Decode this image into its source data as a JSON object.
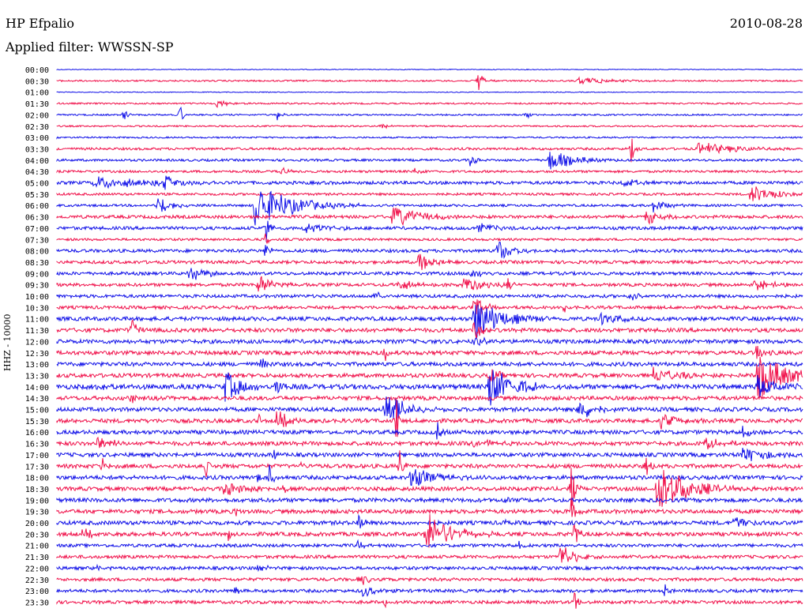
{
  "header": {
    "station": "HP Efpalio",
    "date": "2010-08-28",
    "filter": "Applied filter: WWSSN-SP"
  },
  "colors": {
    "odd_trace": "#1010e8",
    "even_trace": "#f0104a",
    "text": "#000000",
    "background": "#ffffff"
  },
  "chart_data": {
    "type": "line",
    "title": "HP Efpalio",
    "ylabel": "HHZ - 10000",
    "xlabel": "",
    "row_interval_minutes": 30,
    "grid": false,
    "rows": [
      "00:00",
      "00:30",
      "01:00",
      "01:30",
      "02:00",
      "02:30",
      "03:00",
      "03:30",
      "04:00",
      "04:30",
      "05:00",
      "05:30",
      "06:00",
      "06:30",
      "07:00",
      "07:30",
      "08:00",
      "08:30",
      "09:00",
      "09:30",
      "10:00",
      "10:30",
      "11:00",
      "11:30",
      "12:00",
      "12:30",
      "13:00",
      "13:30",
      "14:00",
      "14:30",
      "15:00",
      "15:30",
      "16:00",
      "16:30",
      "17:00",
      "17:30",
      "18:00",
      "18:30",
      "19:00",
      "19:30",
      "20:00",
      "20:30",
      "21:00",
      "21:30",
      "22:00",
      "22:30",
      "23:00",
      "23:30"
    ],
    "noise_level": [
      1,
      2,
      1,
      2,
      2,
      2,
      2,
      3,
      3,
      3,
      4,
      3,
      3,
      4,
      4,
      3,
      4,
      4,
      4,
      4,
      4,
      4,
      5,
      5,
      5,
      5,
      5,
      5,
      6,
      5,
      5,
      5,
      5,
      5,
      5,
      5,
      5,
      5,
      5,
      5,
      5,
      5,
      4,
      4,
      4,
      4,
      4,
      4
    ],
    "events": [
      {
        "row": 1,
        "t": 0.565,
        "amp": 16,
        "dur": 0.006
      },
      {
        "row": 1,
        "t": 0.7,
        "amp": 5,
        "dur": 0.04
      },
      {
        "row": 3,
        "t": 0.215,
        "amp": 6,
        "dur": 0.012
      },
      {
        "row": 4,
        "t": 0.09,
        "amp": 10,
        "dur": 0.004
      },
      {
        "row": 4,
        "t": 0.165,
        "amp": 14,
        "dur": 0.004
      },
      {
        "row": 4,
        "t": 0.295,
        "amp": 9,
        "dur": 0.004
      },
      {
        "row": 4,
        "t": 0.63,
        "amp": 7,
        "dur": 0.003
      },
      {
        "row": 5,
        "t": 0.43,
        "amp": 4,
        "dur": 0.015
      },
      {
        "row": 7,
        "t": 0.77,
        "amp": 18,
        "dur": 0.004
      },
      {
        "row": 7,
        "t": 0.86,
        "amp": 8,
        "dur": 0.05
      },
      {
        "row": 8,
        "t": 0.555,
        "amp": 10,
        "dur": 0.006
      },
      {
        "row": 8,
        "t": 0.66,
        "amp": 14,
        "dur": 0.03
      },
      {
        "row": 9,
        "t": 0.3,
        "amp": 6,
        "dur": 0.008
      },
      {
        "row": 9,
        "t": 0.48,
        "amp": 5,
        "dur": 0.008
      },
      {
        "row": 10,
        "t": 0.05,
        "amp": 7,
        "dur": 0.08
      },
      {
        "row": 10,
        "t": 0.145,
        "amp": 10,
        "dur": 0.015
      },
      {
        "row": 10,
        "t": 0.76,
        "amp": 5,
        "dur": 0.02
      },
      {
        "row": 11,
        "t": 0.93,
        "amp": 12,
        "dur": 0.03
      },
      {
        "row": 12,
        "t": 0.135,
        "amp": 12,
        "dur": 0.02
      },
      {
        "row": 12,
        "t": 0.265,
        "amp": 30,
        "dur": 0.045
      },
      {
        "row": 12,
        "t": 0.8,
        "amp": 9,
        "dur": 0.015
      },
      {
        "row": 13,
        "t": 0.45,
        "amp": 14,
        "dur": 0.035
      },
      {
        "row": 13,
        "t": 0.79,
        "amp": 10,
        "dur": 0.02
      },
      {
        "row": 14,
        "t": 0.28,
        "amp": 22,
        "dur": 0.004
      },
      {
        "row": 14,
        "t": 0.33,
        "amp": 8,
        "dur": 0.025
      },
      {
        "row": 14,
        "t": 0.565,
        "amp": 6,
        "dur": 0.02
      },
      {
        "row": 15,
        "t": 0.28,
        "amp": 15,
        "dur": 0.004
      },
      {
        "row": 16,
        "t": 0.28,
        "amp": 14,
        "dur": 0.004
      },
      {
        "row": 16,
        "t": 0.59,
        "amp": 14,
        "dur": 0.02
      },
      {
        "row": 17,
        "t": 0.485,
        "amp": 14,
        "dur": 0.015
      },
      {
        "row": 18,
        "t": 0.175,
        "amp": 12,
        "dur": 0.02
      },
      {
        "row": 18,
        "t": 0.555,
        "amp": 6,
        "dur": 0.02
      },
      {
        "row": 19,
        "t": 0.27,
        "amp": 12,
        "dur": 0.02
      },
      {
        "row": 19,
        "t": 0.455,
        "amp": 8,
        "dur": 0.02
      },
      {
        "row": 19,
        "t": 0.545,
        "amp": 12,
        "dur": 0.025
      },
      {
        "row": 19,
        "t": 0.605,
        "amp": 8,
        "dur": 0.004
      },
      {
        "row": 19,
        "t": 0.935,
        "amp": 8,
        "dur": 0.02
      },
      {
        "row": 20,
        "t": 0.425,
        "amp": 6,
        "dur": 0.01
      },
      {
        "row": 20,
        "t": 0.77,
        "amp": 6,
        "dur": 0.01
      },
      {
        "row": 21,
        "t": 0.56,
        "amp": 22,
        "dur": 0.01
      },
      {
        "row": 21,
        "t": 0.68,
        "amp": 10,
        "dur": 0.004
      },
      {
        "row": 22,
        "t": 0.56,
        "amp": 30,
        "dur": 0.03
      },
      {
        "row": 22,
        "t": 0.73,
        "amp": 8,
        "dur": 0.02
      },
      {
        "row": 23,
        "t": 0.1,
        "amp": 18,
        "dur": 0.006
      },
      {
        "row": 23,
        "t": 0.56,
        "amp": 16,
        "dur": 0.01
      },
      {
        "row": 24,
        "t": 0.56,
        "amp": 12,
        "dur": 0.008
      },
      {
        "row": 25,
        "t": 0.44,
        "amp": 10,
        "dur": 0.004
      },
      {
        "row": 25,
        "t": 0.51,
        "amp": 6,
        "dur": 0.004
      },
      {
        "row": 25,
        "t": 0.937,
        "amp": 12,
        "dur": 0.008
      },
      {
        "row": 26,
        "t": 0.275,
        "amp": 14,
        "dur": 0.004
      },
      {
        "row": 27,
        "t": 0.58,
        "amp": 12,
        "dur": 0.01
      },
      {
        "row": 27,
        "t": 0.8,
        "amp": 10,
        "dur": 0.03
      },
      {
        "row": 27,
        "t": 0.94,
        "amp": 30,
        "dur": 0.035
      },
      {
        "row": 28,
        "t": 0.05,
        "amp": 7,
        "dur": 0.03
      },
      {
        "row": 28,
        "t": 0.225,
        "amp": 22,
        "dur": 0.02
      },
      {
        "row": 28,
        "t": 0.295,
        "amp": 26,
        "dur": 0.006
      },
      {
        "row": 28,
        "t": 0.58,
        "amp": 28,
        "dur": 0.03
      },
      {
        "row": 28,
        "t": 0.94,
        "amp": 18,
        "dur": 0.02
      },
      {
        "row": 29,
        "t": 0.1,
        "amp": 5,
        "dur": 0.02
      },
      {
        "row": 30,
        "t": 0.44,
        "amp": 28,
        "dur": 0.02
      },
      {
        "row": 30,
        "t": 0.7,
        "amp": 14,
        "dur": 0.02
      },
      {
        "row": 31,
        "t": 0.27,
        "amp": 10,
        "dur": 0.004
      },
      {
        "row": 31,
        "t": 0.295,
        "amp": 12,
        "dur": 0.02
      },
      {
        "row": 31,
        "t": 0.455,
        "amp": 40,
        "dur": 0.003
      },
      {
        "row": 31,
        "t": 0.81,
        "amp": 10,
        "dur": 0.02
      },
      {
        "row": 32,
        "t": 0.51,
        "amp": 14,
        "dur": 0.004
      },
      {
        "row": 32,
        "t": 0.92,
        "amp": 8,
        "dur": 0.01
      },
      {
        "row": 33,
        "t": 0.055,
        "amp": 8,
        "dur": 0.02
      },
      {
        "row": 33,
        "t": 0.56,
        "amp": 6,
        "dur": 0.02
      },
      {
        "row": 33,
        "t": 0.87,
        "amp": 8,
        "dur": 0.02
      },
      {
        "row": 34,
        "t": 0.29,
        "amp": 12,
        "dur": 0.004
      },
      {
        "row": 34,
        "t": 0.92,
        "amp": 10,
        "dur": 0.03
      },
      {
        "row": 35,
        "t": 0.06,
        "amp": 10,
        "dur": 0.006
      },
      {
        "row": 35,
        "t": 0.2,
        "amp": 14,
        "dur": 0.004
      },
      {
        "row": 35,
        "t": 0.325,
        "amp": 8,
        "dur": 0.004
      },
      {
        "row": 35,
        "t": 0.46,
        "amp": 22,
        "dur": 0.004
      },
      {
        "row": 35,
        "t": 0.79,
        "amp": 12,
        "dur": 0.006
      },
      {
        "row": 36,
        "t": 0.27,
        "amp": 10,
        "dur": 0.004
      },
      {
        "row": 36,
        "t": 0.285,
        "amp": 18,
        "dur": 0.004
      },
      {
        "row": 36,
        "t": 0.475,
        "amp": 14,
        "dur": 0.03
      },
      {
        "row": 37,
        "t": 0.225,
        "amp": 10,
        "dur": 0.025
      },
      {
        "row": 37,
        "t": 0.305,
        "amp": 8,
        "dur": 0.004
      },
      {
        "row": 37,
        "t": 0.69,
        "amp": 40,
        "dur": 0.004
      },
      {
        "row": 37,
        "t": 0.805,
        "amp": 35,
        "dur": 0.035
      },
      {
        "row": 38,
        "t": 0.6,
        "amp": 6,
        "dur": 0.004
      },
      {
        "row": 39,
        "t": 0.24,
        "amp": 8,
        "dur": 0.004
      },
      {
        "row": 39,
        "t": 0.69,
        "amp": 18,
        "dur": 0.006
      },
      {
        "row": 40,
        "t": 0.405,
        "amp": 18,
        "dur": 0.004
      },
      {
        "row": 40,
        "t": 0.6,
        "amp": 5,
        "dur": 0.004
      },
      {
        "row": 40,
        "t": 0.905,
        "amp": 10,
        "dur": 0.02
      },
      {
        "row": 41,
        "t": 0.035,
        "amp": 6,
        "dur": 0.015
      },
      {
        "row": 41,
        "t": 0.23,
        "amp": 12,
        "dur": 0.004
      },
      {
        "row": 41,
        "t": 0.495,
        "amp": 28,
        "dur": 0.03
      },
      {
        "row": 41,
        "t": 0.695,
        "amp": 40,
        "dur": 0.003
      },
      {
        "row": 42,
        "t": 0.405,
        "amp": 12,
        "dur": 0.004
      },
      {
        "row": 42,
        "t": 0.62,
        "amp": 5,
        "dur": 0.004
      },
      {
        "row": 43,
        "t": 0.675,
        "amp": 18,
        "dur": 0.015
      },
      {
        "row": 44,
        "t": 0.05,
        "amp": 5,
        "dur": 0.01
      },
      {
        "row": 44,
        "t": 0.27,
        "amp": 5,
        "dur": 0.01
      },
      {
        "row": 45,
        "t": 0.405,
        "amp": 8,
        "dur": 0.015
      },
      {
        "row": 46,
        "t": 0.24,
        "amp": 8,
        "dur": 0.004
      },
      {
        "row": 46,
        "t": 0.41,
        "amp": 8,
        "dur": 0.015
      },
      {
        "row": 46,
        "t": 0.815,
        "amp": 10,
        "dur": 0.004
      },
      {
        "row": 47,
        "t": 0.44,
        "amp": 6,
        "dur": 0.004
      },
      {
        "row": 47,
        "t": 0.695,
        "amp": 20,
        "dur": 0.003
      }
    ]
  }
}
